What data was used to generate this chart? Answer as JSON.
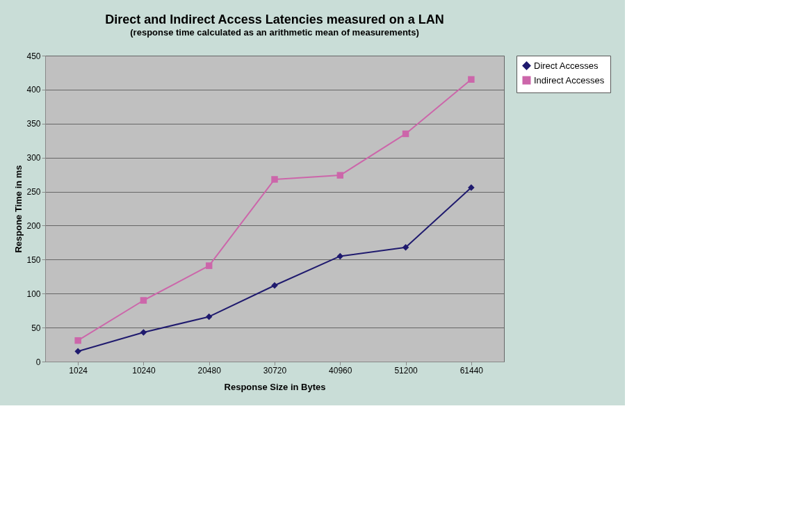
{
  "chart_data": {
    "type": "line",
    "title": "Direct and Indirect Access Latencies measured on a LAN",
    "subtitle": "(response time calculated as an arithmetic mean of measurements)",
    "xlabel": "Response Size in Bytes",
    "ylabel": "Respone Time in ms",
    "categories": [
      "1024",
      "10240",
      "20480",
      "30720",
      "40960",
      "51200",
      "61440"
    ],
    "series": [
      {
        "name": "Direct Accesses",
        "color": "#1f1a6e",
        "marker": "diamond",
        "values": [
          15,
          43,
          66,
          112,
          155,
          168,
          256
        ]
      },
      {
        "name": "Indirect Accesses",
        "color": "#cc66aa",
        "marker": "square",
        "values": [
          31,
          90,
          141,
          268,
          274,
          335,
          415
        ]
      }
    ],
    "ylim": [
      0,
      450
    ],
    "yticks": [
      0,
      50,
      100,
      150,
      200,
      250,
      300,
      350,
      400,
      450
    ],
    "grid": "y",
    "legend": "right",
    "line_style": "solid"
  }
}
